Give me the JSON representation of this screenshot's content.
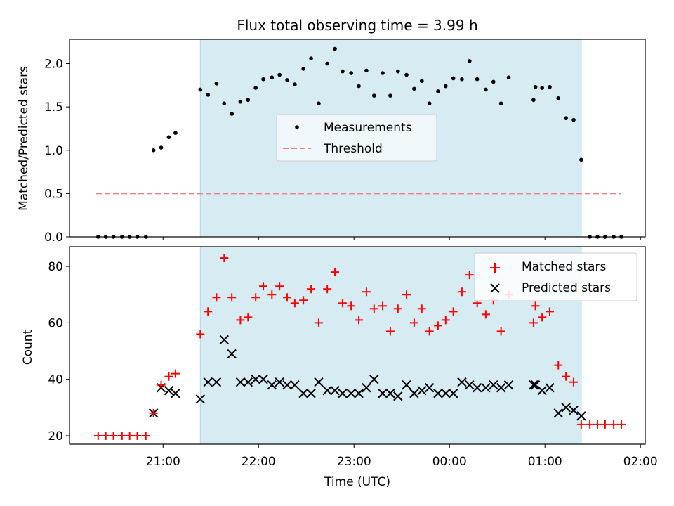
{
  "title": "Flux total observing time = 3.99 h",
  "colors": {
    "shade": "#add8e6",
    "measurements": "#000000",
    "threshold": "#f08080",
    "matched": "#ff0000",
    "predicted": "#000000"
  },
  "x_axis": {
    "label": "Time (UTC)",
    "range_hours": [
      20.02,
      26.05
    ],
    "ticks": [
      {
        "h": 21,
        "label": "21:00"
      },
      {
        "h": 22,
        "label": "22:00"
      },
      {
        "h": 23,
        "label": "23:00"
      },
      {
        "h": 24,
        "label": "00:00"
      },
      {
        "h": 25,
        "label": "01:00"
      },
      {
        "h": 26,
        "label": "02:00"
      }
    ]
  },
  "chart_data": [
    {
      "type": "scatter",
      "panel": "top",
      "ylabel": "Matched/Predicted stars",
      "ylim": [
        0,
        2.28
      ],
      "yticks": [
        0.0,
        0.5,
        1.0,
        1.5,
        2.0
      ],
      "ytick_labels": [
        "0.0",
        "0.5",
        "1.0",
        "1.5",
        "2.0"
      ],
      "shaded_interval": [
        21.39,
        25.38
      ],
      "legend": {
        "position": "center",
        "entries": [
          "Measurements",
          "Threshold"
        ]
      },
      "threshold": {
        "name": "Threshold",
        "y": 0.5,
        "x_range": [
          20.3,
          25.8
        ]
      },
      "series": [
        {
          "name": "Measurements",
          "points": [
            [
              20.32,
              0
            ],
            [
              20.4,
              0
            ],
            [
              20.48,
              0
            ],
            [
              20.57,
              0
            ],
            [
              20.65,
              0
            ],
            [
              20.73,
              0
            ],
            [
              20.82,
              0
            ],
            [
              20.9,
              1.0
            ],
            [
              20.98,
              1.03
            ],
            [
              21.06,
              1.15
            ],
            [
              21.13,
              1.2
            ],
            [
              21.39,
              1.7
            ],
            [
              21.47,
              1.64
            ],
            [
              21.56,
              1.77
            ],
            [
              21.64,
              1.54
            ],
            [
              21.72,
              1.42
            ],
            [
              21.81,
              1.56
            ],
            [
              21.89,
              1.58
            ],
            [
              21.97,
              1.72
            ],
            [
              22.05,
              1.82
            ],
            [
              22.14,
              1.84
            ],
            [
              22.22,
              1.87
            ],
            [
              22.3,
              1.81
            ],
            [
              22.38,
              1.76
            ],
            [
              22.47,
              1.94
            ],
            [
              22.55,
              2.06
            ],
            [
              22.63,
              1.54
            ],
            [
              22.72,
              2.0
            ],
            [
              22.8,
              2.17
            ],
            [
              22.88,
              1.91
            ],
            [
              22.97,
              1.89
            ],
            [
              23.05,
              1.74
            ],
            [
              23.13,
              1.92
            ],
            [
              23.21,
              1.63
            ],
            [
              23.3,
              1.89
            ],
            [
              23.38,
              1.63
            ],
            [
              23.46,
              1.91
            ],
            [
              23.55,
              1.87
            ],
            [
              23.63,
              1.71
            ],
            [
              23.71,
              1.8
            ],
            [
              23.79,
              1.54
            ],
            [
              23.88,
              1.68
            ],
            [
              23.96,
              1.74
            ],
            [
              24.04,
              1.83
            ],
            [
              24.13,
              1.82
            ],
            [
              24.21,
              2.03
            ],
            [
              24.29,
              1.82
            ],
            [
              24.38,
              1.7
            ],
            [
              24.46,
              1.79
            ],
            [
              24.54,
              1.54
            ],
            [
              24.62,
              1.84
            ],
            [
              24.88,
              1.58
            ],
            [
              24.9,
              1.73
            ],
            [
              24.97,
              1.72
            ],
            [
              25.05,
              1.73
            ],
            [
              25.14,
              1.6
            ],
            [
              25.22,
              1.37
            ],
            [
              25.3,
              1.35
            ],
            [
              25.38,
              0.89
            ],
            [
              25.47,
              0
            ],
            [
              25.55,
              0
            ],
            [
              25.63,
              0
            ],
            [
              25.72,
              0
            ],
            [
              25.8,
              0
            ]
          ]
        }
      ]
    },
    {
      "type": "scatter",
      "panel": "bottom",
      "ylabel": "Count",
      "ylim": [
        17,
        87
      ],
      "yticks": [
        20,
        40,
        60,
        80
      ],
      "ytick_labels": [
        "20",
        "40",
        "60",
        "80"
      ],
      "shaded_interval": [
        21.39,
        25.38
      ],
      "legend": {
        "position": "top-right",
        "entries": [
          "Matched stars",
          "Predicted stars"
        ]
      },
      "series": [
        {
          "name": "Matched stars",
          "marker": "plus",
          "points": [
            [
              20.32,
              20
            ],
            [
              20.4,
              20
            ],
            [
              20.48,
              20
            ],
            [
              20.57,
              20
            ],
            [
              20.65,
              20
            ],
            [
              20.73,
              20
            ],
            [
              20.82,
              20
            ],
            [
              20.9,
              28
            ],
            [
              20.98,
              38
            ],
            [
              21.06,
              41
            ],
            [
              21.13,
              42
            ],
            [
              21.39,
              56
            ],
            [
              21.47,
              64
            ],
            [
              21.56,
              69
            ],
            [
              21.64,
              83
            ],
            [
              21.72,
              69
            ],
            [
              21.81,
              61
            ],
            [
              21.89,
              62
            ],
            [
              21.97,
              69
            ],
            [
              22.05,
              73
            ],
            [
              22.14,
              70
            ],
            [
              22.22,
              73
            ],
            [
              22.3,
              69
            ],
            [
              22.38,
              67
            ],
            [
              22.47,
              68
            ],
            [
              22.55,
              72
            ],
            [
              22.63,
              60
            ],
            [
              22.72,
              72
            ],
            [
              22.8,
              78
            ],
            [
              22.88,
              67
            ],
            [
              22.97,
              66
            ],
            [
              23.05,
              61
            ],
            [
              23.13,
              71
            ],
            [
              23.21,
              65
            ],
            [
              23.3,
              66
            ],
            [
              23.38,
              57
            ],
            [
              23.46,
              65
            ],
            [
              23.55,
              70
            ],
            [
              23.63,
              60
            ],
            [
              23.71,
              65
            ],
            [
              23.79,
              57
            ],
            [
              23.88,
              59
            ],
            [
              23.96,
              61
            ],
            [
              24.04,
              64
            ],
            [
              24.13,
              71
            ],
            [
              24.21,
              77
            ],
            [
              24.29,
              67
            ],
            [
              24.38,
              63
            ],
            [
              24.46,
              68
            ],
            [
              24.54,
              57
            ],
            [
              24.62,
              70
            ],
            [
              24.88,
              60
            ],
            [
              24.9,
              66
            ],
            [
              24.97,
              62
            ],
            [
              25.05,
              64
            ],
            [
              25.14,
              45
            ],
            [
              25.22,
              41
            ],
            [
              25.3,
              39
            ],
            [
              25.38,
              24
            ],
            [
              25.47,
              24
            ],
            [
              25.55,
              24
            ],
            [
              25.63,
              24
            ],
            [
              25.72,
              24
            ],
            [
              25.8,
              24
            ]
          ]
        },
        {
          "name": "Predicted stars",
          "marker": "x",
          "points": [
            [
              20.9,
              28
            ],
            [
              20.98,
              37
            ],
            [
              21.06,
              36
            ],
            [
              21.13,
              35
            ],
            [
              21.39,
              33
            ],
            [
              21.47,
              39
            ],
            [
              21.56,
              39
            ],
            [
              21.64,
              54
            ],
            [
              21.72,
              49
            ],
            [
              21.81,
              39
            ],
            [
              21.89,
              39
            ],
            [
              21.97,
              40
            ],
            [
              22.05,
              40
            ],
            [
              22.14,
              38
            ],
            [
              22.22,
              39
            ],
            [
              22.3,
              38
            ],
            [
              22.38,
              38
            ],
            [
              22.47,
              35
            ],
            [
              22.55,
              35
            ],
            [
              22.63,
              39
            ],
            [
              22.72,
              36
            ],
            [
              22.8,
              36
            ],
            [
              22.88,
              35
            ],
            [
              22.97,
              35
            ],
            [
              23.05,
              35
            ],
            [
              23.13,
              37
            ],
            [
              23.21,
              40
            ],
            [
              23.3,
              35
            ],
            [
              23.38,
              35
            ],
            [
              23.46,
              34
            ],
            [
              23.55,
              38
            ],
            [
              23.63,
              35
            ],
            [
              23.71,
              36
            ],
            [
              23.79,
              37
            ],
            [
              23.88,
              35
            ],
            [
              23.96,
              35
            ],
            [
              24.04,
              35
            ],
            [
              24.13,
              39
            ],
            [
              24.21,
              38
            ],
            [
              24.29,
              37
            ],
            [
              24.38,
              37
            ],
            [
              24.46,
              38
            ],
            [
              24.54,
              37
            ],
            [
              24.62,
              38
            ],
            [
              24.88,
              38
            ],
            [
              24.9,
              38
            ],
            [
              24.97,
              36
            ],
            [
              25.05,
              37
            ],
            [
              25.14,
              28
            ],
            [
              25.22,
              30
            ],
            [
              25.3,
              29
            ],
            [
              25.38,
              27
            ]
          ]
        }
      ]
    }
  ]
}
